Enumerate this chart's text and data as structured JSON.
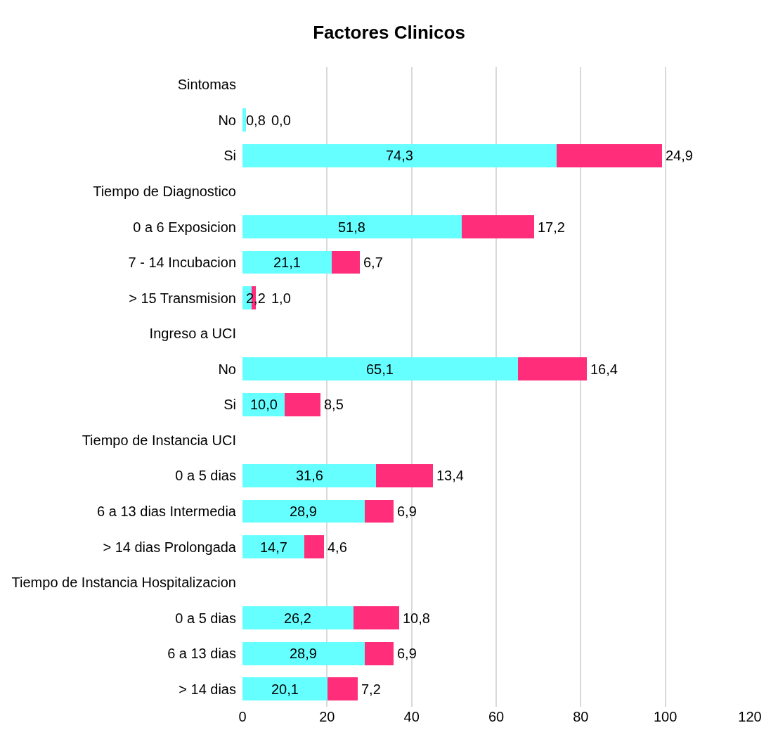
{
  "chart_data": {
    "type": "bar",
    "title": "Factores Clinicos",
    "orientation": "horizontal",
    "stacked": true,
    "categories": [
      "Sintomas",
      "No",
      "Si",
      "Tiempo de Diagnostico",
      "0 a 6 Exposicion",
      "7 - 14 Incubacion",
      "> 15 Transmision",
      "Ingreso a UCI",
      "No",
      "Si",
      "Tiempo de Instancia UCI",
      "0 a 5 dias",
      "6 a 13 dias Intermedia",
      "> 14 dias Prolongada",
      "Tiempo de Instancia Hospitalizacion",
      "0 a 5 dias",
      "6 a 13 dias",
      "> 14 dias"
    ],
    "series": [
      {
        "color": "#66ffff",
        "values": [
          null,
          0.8,
          74.3,
          null,
          51.8,
          21.1,
          2.2,
          null,
          65.1,
          10.0,
          null,
          31.6,
          28.9,
          14.7,
          null,
          26.2,
          28.9,
          20.1
        ],
        "value_labels": [
          null,
          "0,8",
          "74,3",
          null,
          "51,8",
          "21,1",
          "2,2",
          null,
          "65,1",
          "10,0",
          null,
          "31,6",
          "28,9",
          "14,7",
          null,
          "26,2",
          "28,9",
          "20,1"
        ]
      },
      {
        "color": "#ff2d7a",
        "values": [
          null,
          0.0,
          24.9,
          null,
          17.2,
          6.7,
          1.0,
          null,
          16.4,
          8.5,
          null,
          13.4,
          6.9,
          4.6,
          null,
          10.8,
          6.9,
          7.2
        ],
        "value_labels": [
          null,
          "0,0",
          "24,9",
          null,
          "17,2",
          "6,7",
          "1,0",
          null,
          "16,4",
          "8,5",
          null,
          "13,4",
          "6,9",
          "4,6",
          null,
          "10,8",
          "6,9",
          "7,2"
        ]
      }
    ],
    "xlim": [
      0,
      120
    ],
    "xticks": [
      0,
      20,
      40,
      60,
      80,
      100,
      120
    ],
    "grid": "x"
  }
}
